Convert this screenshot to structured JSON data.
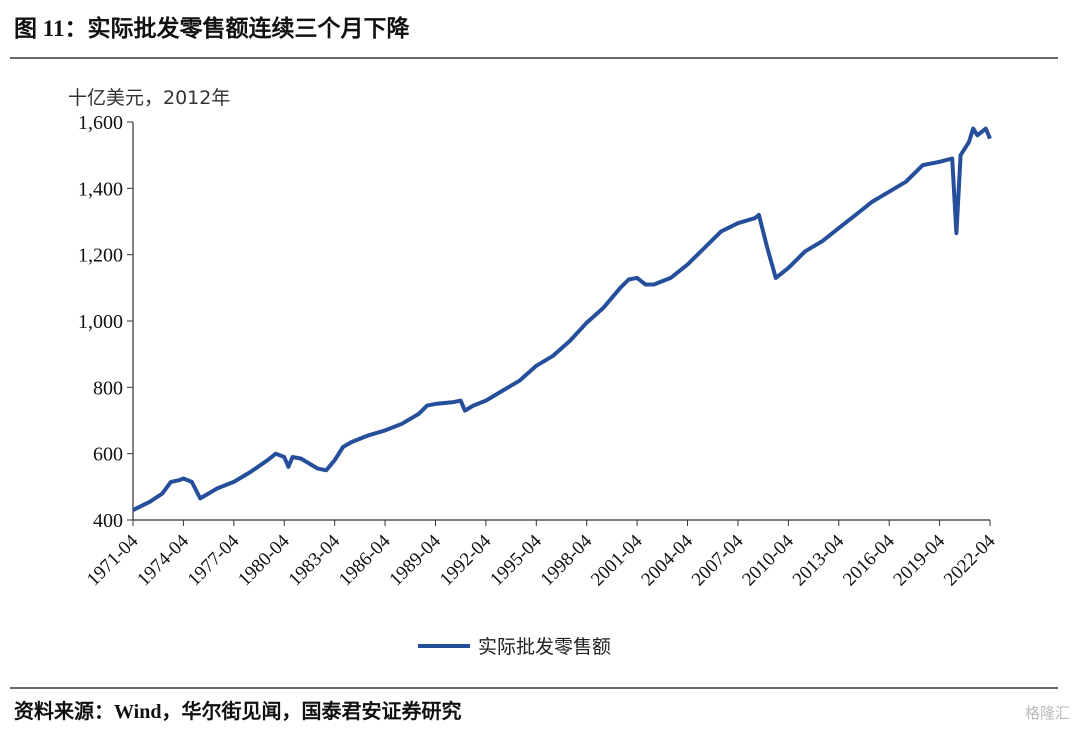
{
  "chart_data": {
    "type": "line",
    "title": "图 11：实际批发零售额连续三个月下降",
    "y_label": "十亿美元，2012年",
    "source": "资料来源：Wind，华尔街见闻，国泰君安证券研究",
    "watermark": "格隆汇",
    "x": [
      "1971-04",
      "1972-04",
      "1973-01",
      "1973-07",
      "1974-01",
      "1974-04",
      "1974-10",
      "1975-04",
      "1975-10",
      "1976-04",
      "1977-04",
      "1978-04",
      "1979-04",
      "1979-10",
      "1980-04",
      "1980-07",
      "1980-10",
      "1981-04",
      "1981-10",
      "1982-04",
      "1982-10",
      "1983-04",
      "1983-10",
      "1984-04",
      "1985-04",
      "1986-04",
      "1987-04",
      "1988-04",
      "1988-10",
      "1989-04",
      "1990-04",
      "1990-10",
      "1991-01",
      "1991-07",
      "1992-04",
      "1993-04",
      "1994-04",
      "1995-04",
      "1996-04",
      "1997-04",
      "1998-04",
      "1999-04",
      "2000-04",
      "2000-10",
      "2001-04",
      "2001-10",
      "2002-04",
      "2003-04",
      "2004-04",
      "2005-04",
      "2006-04",
      "2007-04",
      "2008-04",
      "2008-07",
      "2009-01",
      "2009-07",
      "2010-04",
      "2011-04",
      "2012-04",
      "2013-04",
      "2014-04",
      "2015-04",
      "2016-04",
      "2017-04",
      "2018-04",
      "2019-04",
      "2020-01",
      "2020-04",
      "2020-07",
      "2021-01",
      "2021-04",
      "2021-07",
      "2022-01",
      "2022-04"
    ],
    "series": [
      {
        "name": "实际批发零售额",
        "color": "#254e9b",
        "values": [
          430,
          455,
          480,
          515,
          520,
          525,
          515,
          465,
          480,
          495,
          515,
          545,
          580,
          600,
          590,
          560,
          590,
          585,
          570,
          555,
          550,
          580,
          620,
          635,
          655,
          670,
          690,
          720,
          745,
          750,
          755,
          760,
          730,
          745,
          760,
          790,
          820,
          865,
          895,
          940,
          995,
          1040,
          1100,
          1125,
          1130,
          1110,
          1110,
          1130,
          1170,
          1220,
          1270,
          1295,
          1310,
          1320,
          1220,
          1130,
          1160,
          1210,
          1240,
          1280,
          1320,
          1360,
          1390,
          1420,
          1470,
          1480,
          1490,
          1265,
          1500,
          1540,
          1580,
          1560,
          1580,
          1550
        ]
      }
    ],
    "xlim": [
      "1971-04",
      "2022-04"
    ],
    "xticks": [
      "1971-04",
      "1974-04",
      "1977-04",
      "1980-04",
      "1983-04",
      "1986-04",
      "1989-04",
      "1992-04",
      "1995-04",
      "1998-04",
      "2001-04",
      "2004-04",
      "2007-04",
      "2010-04",
      "2013-04",
      "2016-04",
      "2019-04",
      "2022-04"
    ],
    "ylim": [
      400,
      1600
    ],
    "yticks": [
      400,
      600,
      800,
      {
        "value": 1000,
        "label": "1,000"
      },
      {
        "value": 1200,
        "label": "1,200"
      },
      {
        "value": 1400,
        "label": "1,400"
      },
      {
        "value": 1600,
        "label": "1,600"
      }
    ],
    "grid": false
  }
}
